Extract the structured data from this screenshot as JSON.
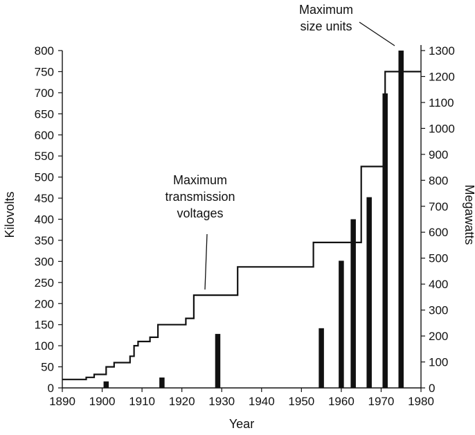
{
  "chart_data": {
    "type": "bar+step",
    "xlabel": "Year",
    "ylabel_left": "Kilovolts",
    "ylabel_right": "Megawatts",
    "x_ticks": [
      "1890",
      "1900",
      "1910",
      "1920",
      "1930",
      "1940",
      "1950",
      "1960",
      "1970",
      "1980"
    ],
    "xlim": [
      1890,
      1980
    ],
    "y_left_ticks": [
      "0",
      "50",
      "100",
      "150",
      "200",
      "250",
      "300",
      "350",
      "400",
      "450",
      "500",
      "550",
      "600",
      "650",
      "700",
      "750",
      "800"
    ],
    "ylim_left": [
      0,
      800
    ],
    "y_right_ticks": [
      "0",
      "100",
      "200",
      "300",
      "400",
      "500",
      "600",
      "700",
      "800",
      "900",
      "1000",
      "1100",
      "1200",
      "1300"
    ],
    "ylim_right": [
      0,
      1300
    ],
    "annotations": {
      "voltage_label": [
        "Maximum",
        "transmission",
        "voltages"
      ],
      "units_label": [
        "Maximum",
        "size units"
      ]
    },
    "series": [
      {
        "name": "Maximum transmission voltages",
        "type": "step",
        "axis": "left",
        "points": [
          [
            1890,
            20
          ],
          [
            1896,
            20
          ],
          [
            1896,
            25
          ],
          [
            1898,
            25
          ],
          [
            1898,
            32
          ],
          [
            1901,
            32
          ],
          [
            1901,
            50
          ],
          [
            1903,
            50
          ],
          [
            1903,
            60
          ],
          [
            1907,
            60
          ],
          [
            1907,
            75
          ],
          [
            1908,
            75
          ],
          [
            1908,
            100
          ],
          [
            1909,
            100
          ],
          [
            1909,
            110
          ],
          [
            1912,
            110
          ],
          [
            1912,
            120
          ],
          [
            1914,
            120
          ],
          [
            1914,
            150
          ],
          [
            1921,
            150
          ],
          [
            1921,
            165
          ],
          [
            1923,
            165
          ],
          [
            1923,
            220
          ],
          [
            1934,
            220
          ],
          [
            1934,
            287
          ],
          [
            1953,
            287
          ],
          [
            1953,
            345
          ],
          [
            1965,
            345
          ],
          [
            1965,
            525
          ],
          [
            1971,
            525
          ],
          [
            1971,
            750
          ],
          [
            1980,
            750
          ]
        ]
      },
      {
        "name": "Maximum size units",
        "type": "bar",
        "axis": "right",
        "x": [
          1901,
          1915,
          1929,
          1955,
          1960,
          1963,
          1967,
          1971,
          1975
        ],
        "values": [
          25,
          40,
          208,
          230,
          490,
          650,
          735,
          1135,
          1300
        ]
      }
    ]
  }
}
